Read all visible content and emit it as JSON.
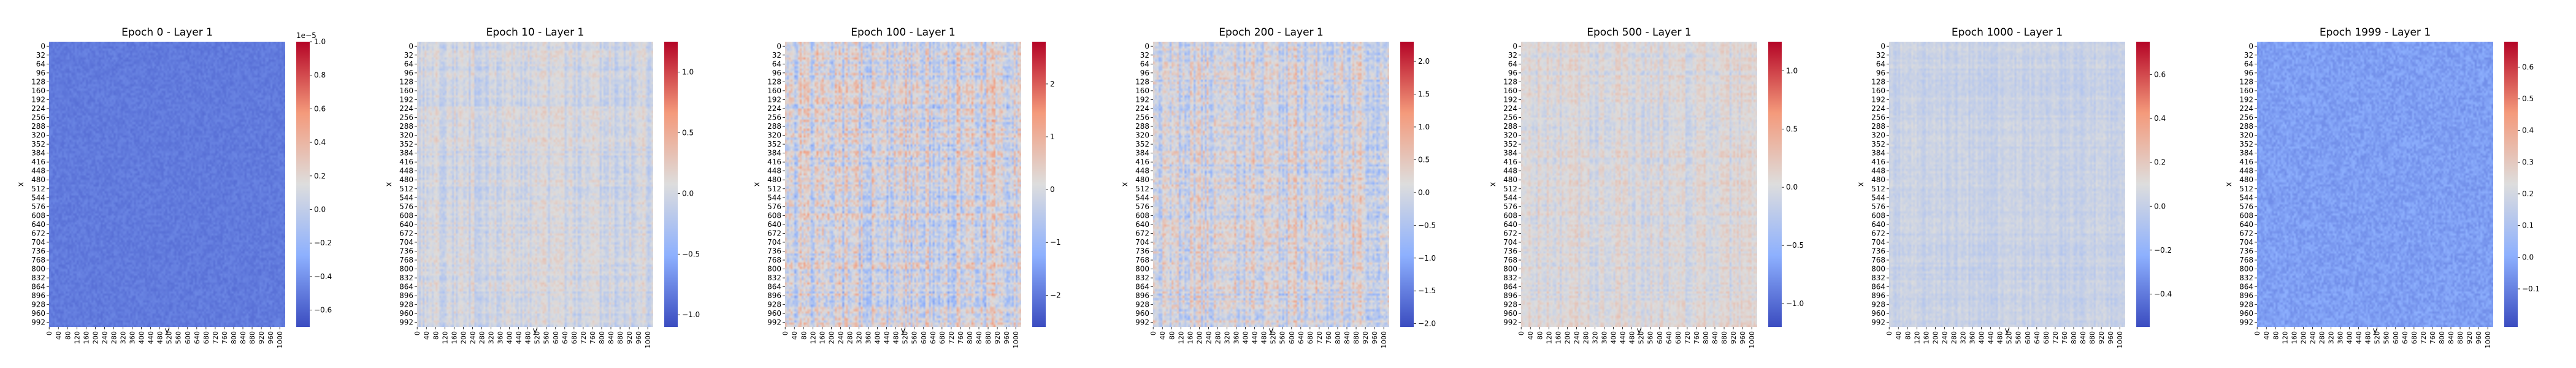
{
  "ytick_labels": [
    "0",
    "32",
    "64",
    "96",
    "128",
    "160",
    "192",
    "224",
    "256",
    "288",
    "320",
    "352",
    "384",
    "416",
    "448",
    "480",
    "512",
    "544",
    "576",
    "608",
    "640",
    "672",
    "704",
    "736",
    "768",
    "800",
    "832",
    "864",
    "896",
    "928",
    "960",
    "992"
  ],
  "xtick_labels": [
    "0",
    "40",
    "80",
    "120",
    "160",
    "200",
    "240",
    "280",
    "320",
    "360",
    "400",
    "440",
    "480",
    "520",
    "560",
    "600",
    "640",
    "680",
    "720",
    "760",
    "800",
    "840",
    "880",
    "920",
    "960",
    "1000"
  ],
  "chart_data": [
    {
      "type": "heatmap",
      "title": "Epoch 0 - Layer 1",
      "xlabel": "y",
      "ylabel": "x",
      "rows": 1024,
      "cols": 1024,
      "base_value": -0.5,
      "noise": 0.05,
      "stripe": 0.0,
      "colorbar": {
        "min": -0.7,
        "max": 1.0,
        "ticks": [
          -0.6,
          -0.4,
          -0.2,
          0.0,
          0.2,
          0.4,
          0.6,
          0.8,
          1.0
        ],
        "tick_labels": [
          "−0.6",
          "−0.4",
          "−0.2",
          "0.0",
          "0.2",
          "0.4",
          "0.6",
          "0.8",
          "1.0"
        ],
        "offset_text": "1e−5"
      }
    },
    {
      "type": "heatmap",
      "title": "Epoch 10 - Layer 1",
      "xlabel": "y",
      "ylabel": "x",
      "rows": 1024,
      "cols": 1024,
      "base_value": 0.0,
      "noise": 0.08,
      "stripe": 0.12,
      "colorbar": {
        "min": -1.1,
        "max": 1.25,
        "ticks": [
          -1.0,
          -0.5,
          0.0,
          0.5,
          1.0
        ],
        "tick_labels": [
          "−1.0",
          "−0.5",
          "0.0",
          "0.5",
          "1.0"
        ],
        "offset_text": ""
      }
    },
    {
      "type": "heatmap",
      "title": "Epoch 100 - Layer 1",
      "xlabel": "y",
      "ylabel": "x",
      "rows": 1024,
      "cols": 1024,
      "base_value": 0.0,
      "noise": 0.18,
      "stripe": 0.25,
      "colorbar": {
        "min": -2.6,
        "max": 2.8,
        "ticks": [
          -2,
          -1,
          0,
          1,
          2
        ],
        "tick_labels": [
          "−2",
          "−1",
          "0",
          "1",
          "2"
        ],
        "offset_text": ""
      }
    },
    {
      "type": "heatmap",
      "title": "Epoch 200 - Layer 1",
      "xlabel": "y",
      "ylabel": "x",
      "rows": 1024,
      "cols": 1024,
      "base_value": 0.0,
      "noise": 0.16,
      "stripe": 0.22,
      "colorbar": {
        "min": -2.05,
        "max": 2.3,
        "ticks": [
          -2.0,
          -1.5,
          -1.0,
          -0.5,
          0.0,
          0.5,
          1.0,
          1.5,
          2.0
        ],
        "tick_labels": [
          "−2.0",
          "−1.5",
          "−1.0",
          "−0.5",
          "0.0",
          "0.5",
          "1.0",
          "1.5",
          "2.0"
        ],
        "offset_text": ""
      }
    },
    {
      "type": "heatmap",
      "title": "Epoch 500 - Layer 1",
      "xlabel": "y",
      "ylabel": "x",
      "rows": 1024,
      "cols": 1024,
      "base_value": 0.0,
      "noise": 0.08,
      "stripe": 0.12,
      "colorbar": {
        "min": -1.2,
        "max": 1.25,
        "ticks": [
          -1.0,
          -0.5,
          0.0,
          0.5,
          1.0
        ],
        "tick_labels": [
          "−1.0",
          "−0.5",
          "0.0",
          "0.5",
          "1.0"
        ],
        "offset_text": ""
      }
    },
    {
      "type": "heatmap",
      "title": "Epoch 1000 - Layer 1",
      "xlabel": "y",
      "ylabel": "x",
      "rows": 1024,
      "cols": 1024,
      "base_value": 0.02,
      "noise": 0.05,
      "stripe": 0.06,
      "colorbar": {
        "min": -0.55,
        "max": 0.75,
        "ticks": [
          -0.4,
          -0.2,
          0.0,
          0.2,
          0.4,
          0.6
        ],
        "tick_labels": [
          "−0.4",
          "−0.2",
          "0.0",
          "0.2",
          "0.4",
          "0.6"
        ],
        "offset_text": ""
      }
    },
    {
      "type": "heatmap",
      "title": "Epoch 1999 - Layer 1",
      "xlabel": "y",
      "ylabel": "x",
      "rows": 1024,
      "cols": 1024,
      "base_value": -0.05,
      "noise": 0.06,
      "stripe": 0.0,
      "colorbar": {
        "min": -0.22,
        "max": 0.68,
        "ticks": [
          -0.1,
          0.0,
          0.1,
          0.2,
          0.3,
          0.4,
          0.5,
          0.6
        ],
        "tick_labels": [
          "−0.1",
          "0.0",
          "0.1",
          "0.2",
          "0.3",
          "0.4",
          "0.5",
          "0.6"
        ],
        "offset_text": ""
      }
    }
  ]
}
